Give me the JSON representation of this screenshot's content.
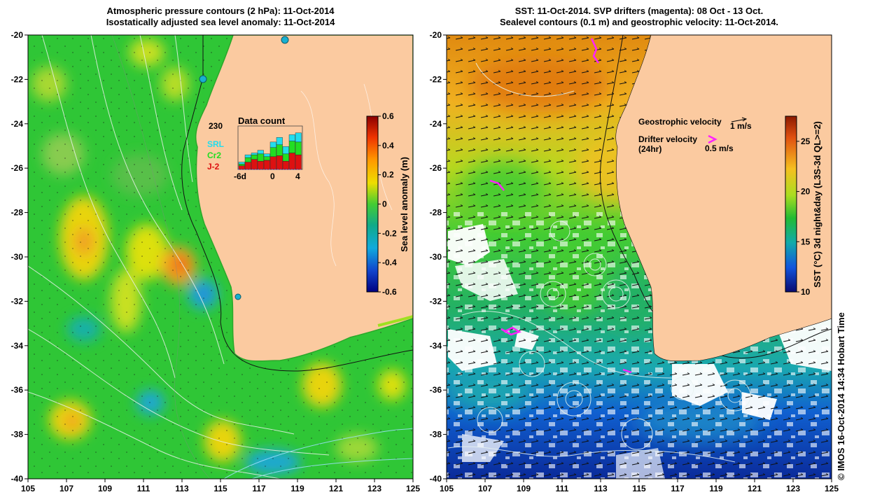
{
  "left_panel": {
    "title_line1": "Atmospheric pressure contours (2 hPa): 11-Oct-2014",
    "title_line2": "Isostatically adjusted sea level anomaly: 11-Oct-2014",
    "colorbar": {
      "label": "Sea level anomaly (m)",
      "ticks": [
        "0.6",
        "0.4",
        "0.2",
        "0",
        "-0.2",
        "-0.4",
        "-0.6"
      ],
      "range": [
        -0.6,
        0.6
      ]
    },
    "data_count": {
      "title": "Data count",
      "max": "230",
      "legend": [
        {
          "label": "SRL",
          "color": "#22ddee"
        },
        {
          "label": "Cr2",
          "color": "#22dd22"
        },
        {
          "label": "J-2",
          "color": "#dd1111"
        }
      ],
      "x_ticks": [
        "-6d",
        "0",
        "4"
      ],
      "bars": [
        {
          "day": -6,
          "j2": 20,
          "cr2": 10,
          "srl": 10
        },
        {
          "day": -5,
          "j2": 40,
          "cr2": 25,
          "srl": 15
        },
        {
          "day": -4,
          "j2": 55,
          "cr2": 25,
          "srl": 10
        },
        {
          "day": -3,
          "j2": 45,
          "cr2": 40,
          "srl": 20
        },
        {
          "day": -2,
          "j2": 50,
          "cr2": 20,
          "srl": 15
        },
        {
          "day": -1,
          "j2": 70,
          "cr2": 50,
          "srl": 30
        },
        {
          "day": 0,
          "j2": 75,
          "cr2": 60,
          "srl": 40
        },
        {
          "day": 1,
          "j2": 45,
          "cr2": 40,
          "srl": 40
        },
        {
          "day": 2,
          "j2": 90,
          "cr2": 65,
          "srl": 35
        },
        {
          "day": 3,
          "j2": 80,
          "cr2": 70,
          "srl": 50
        }
      ]
    }
  },
  "right_panel": {
    "title_line1": "SST: 11-Oct-2014. SVP drifters (magenta): 08 Oct - 13 Oct.",
    "title_line2": "Sealevel contours (0.1 m) and geostrophic velocity: 11-Oct-2014.",
    "colorbar": {
      "label": "SST (°C) 3d night&day (L3S-3d QL>=2)",
      "ticks": [
        "25",
        "20",
        "15",
        "10"
      ],
      "range": [
        10,
        27.5
      ]
    },
    "legend": {
      "geostrophic_label": "Geostrophic velocity",
      "geostrophic_scale": "1 m/s",
      "drifter_label": "Drifter velocity",
      "drifter_sub": "(24hr)",
      "drifter_scale": "0.5 m/s",
      "drifter_color": "#ff22ff"
    }
  },
  "axes": {
    "lat_ticks": [
      "-20",
      "-22",
      "-24",
      "-26",
      "-28",
      "-30",
      "-32",
      "-34",
      "-36",
      "-38",
      "-40"
    ],
    "lon_ticks": [
      "105",
      "107",
      "109",
      "111",
      "113",
      "115",
      "117",
      "119",
      "121",
      "123",
      "125"
    ],
    "lat_range": [
      -40,
      -20
    ],
    "lon_range": [
      105,
      125
    ]
  },
  "credit": "© IMOS 16-Oct-2014 14:34 Hobart Time",
  "colors": {
    "land": "#fbcaa0",
    "sla_green": "#2fc636",
    "accent_arrow": "#ff22ff"
  }
}
